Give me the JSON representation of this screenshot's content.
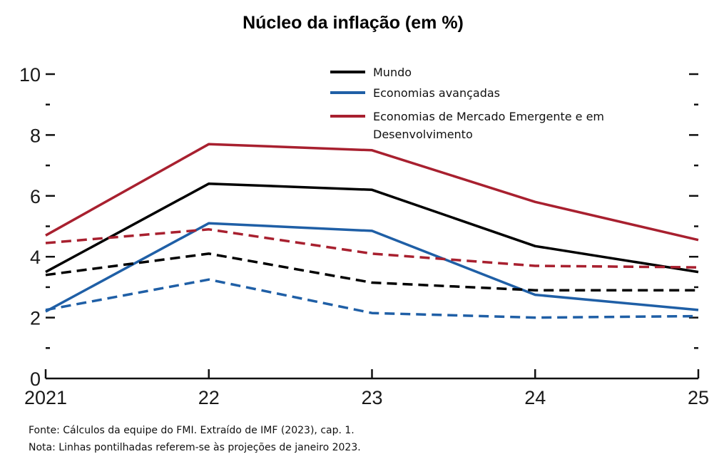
{
  "chart_data": {
    "type": "line",
    "title": "Núcleo da inflação  (em %)",
    "xlabel": "",
    "ylabel": "",
    "x": [
      "2021",
      "22",
      "23",
      "24",
      "25"
    ],
    "ylim": [
      0,
      10
    ],
    "yticks": [
      0,
      2,
      4,
      6,
      8,
      10
    ],
    "ytick_labels": [
      "0",
      "2",
      "4",
      "6",
      "8",
      "10"
    ],
    "minor_yticks": [
      1,
      3,
      5,
      7,
      9
    ],
    "grid": false,
    "legend_position": "top-center",
    "series": [
      {
        "name": "Mundo",
        "color": "#000000",
        "style": "solid",
        "values": [
          3.5,
          6.4,
          6.2,
          4.35,
          3.5
        ]
      },
      {
        "name": "Economias avançadas",
        "color": "#1f5fa6",
        "style": "solid",
        "values": [
          2.2,
          5.1,
          4.85,
          2.75,
          2.25
        ]
      },
      {
        "name": "Economias de Mercado Emergente e em Desenvolvimento",
        "color": "#a8202f",
        "style": "solid",
        "values": [
          4.7,
          7.7,
          7.5,
          5.8,
          4.55
        ]
      },
      {
        "name": "Mundo (projeção jan 2023)",
        "color": "#000000",
        "style": "dashed",
        "values": [
          3.4,
          4.1,
          3.15,
          2.9,
          2.9
        ]
      },
      {
        "name": "Economias avançadas (projeção jan 2023)",
        "color": "#1f5fa6",
        "style": "dashed",
        "values": [
          2.25,
          3.25,
          2.15,
          2.0,
          2.05
        ]
      },
      {
        "name": "Economias de Mercado Emergente e em Desenvolvimento (projeção jan 2023)",
        "color": "#a8202f",
        "style": "dashed",
        "values": [
          4.45,
          4.9,
          4.1,
          3.7,
          3.65
        ]
      }
    ],
    "legend": [
      {
        "lines": [
          "Mundo"
        ],
        "color": "#000000"
      },
      {
        "lines": [
          "Economias avançadas"
        ],
        "color": "#1f5fa6"
      },
      {
        "lines": [
          "Economias de Mercado Emergente e em",
          "Desenvolvimento"
        ],
        "color": "#a8202f"
      }
    ]
  },
  "notes": {
    "source": "Fonte: Cálculos da equipe do FMI. Extraído de IMF (2023), cap. 1.",
    "note": "Nota: Linhas pontilhadas referem-se às projeções de janeiro 2023."
  }
}
